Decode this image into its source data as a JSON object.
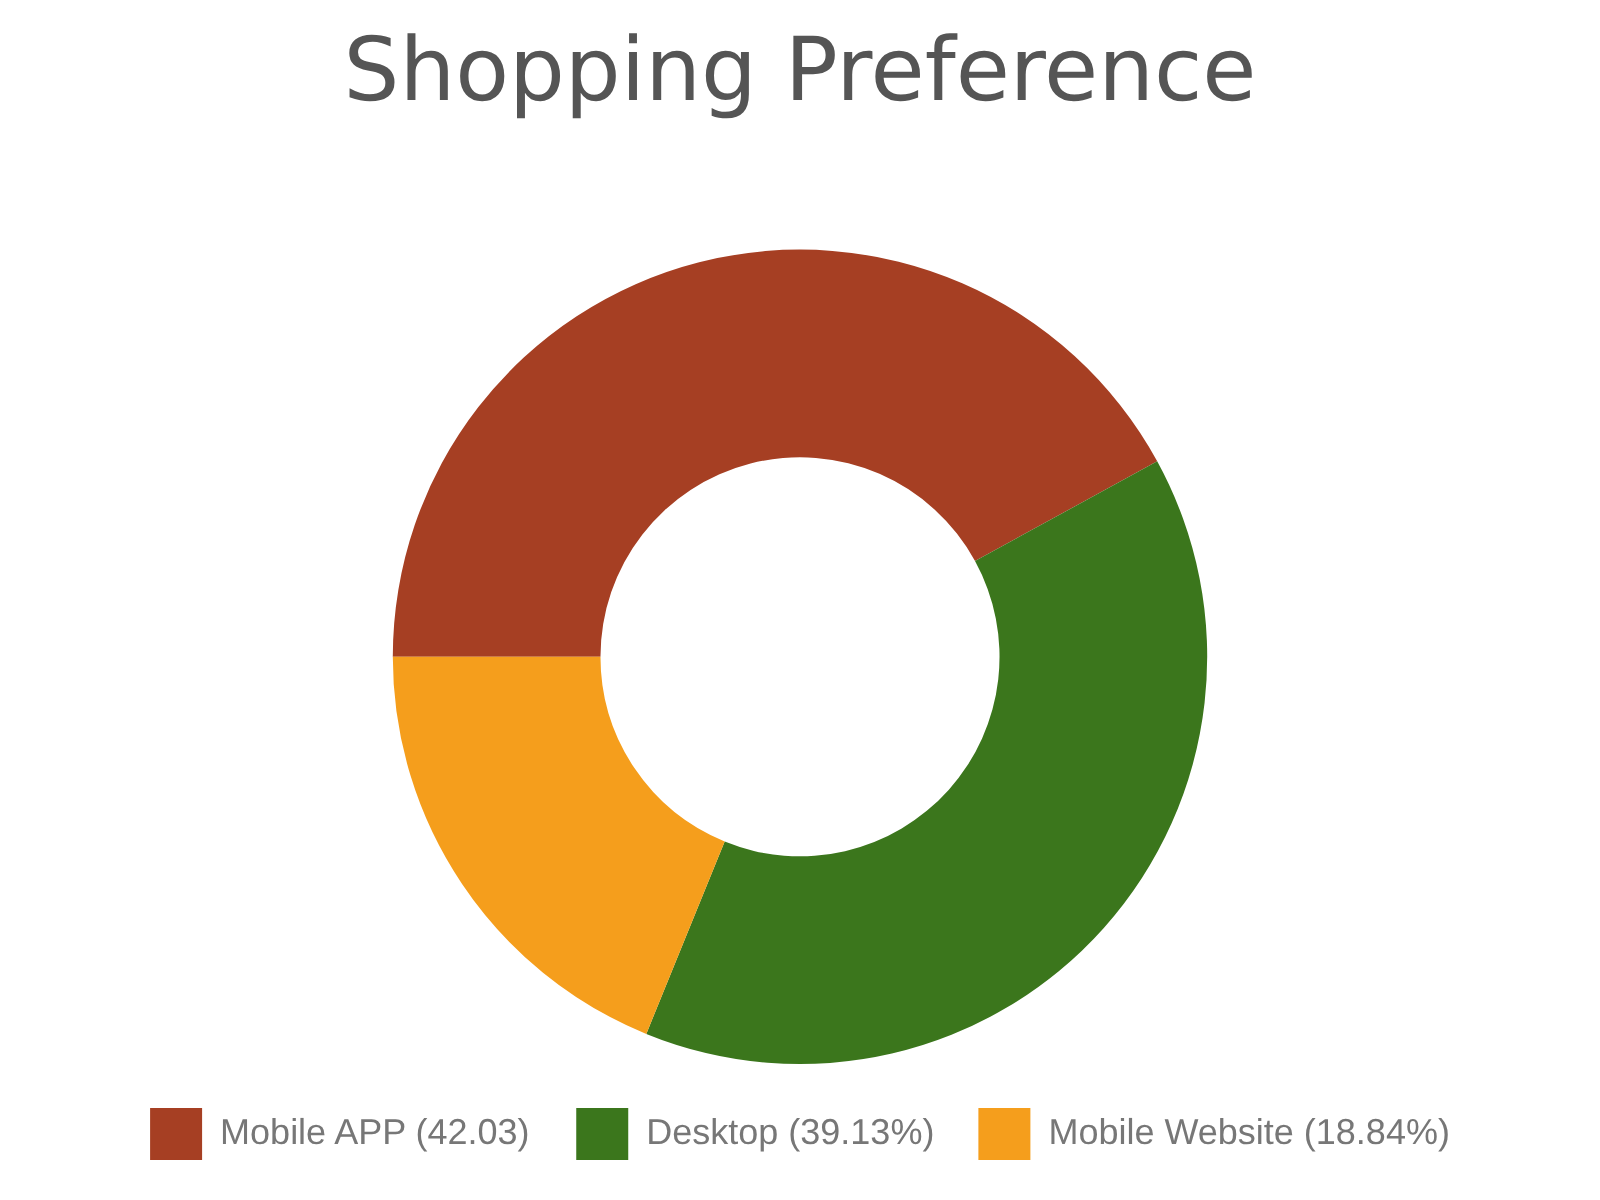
{
  "chart_data": {
    "type": "donut",
    "title": "Shopping Preference",
    "categories": [
      "Mobile APP (42.03)",
      "Desktop (39.13%)",
      "Mobile Website (18.84%)"
    ],
    "values": [
      42.03,
      39.13,
      18.84
    ],
    "colors": [
      "#a63f23",
      "#3b761c",
      "#f59e1c"
    ],
    "legend": "bottom"
  }
}
